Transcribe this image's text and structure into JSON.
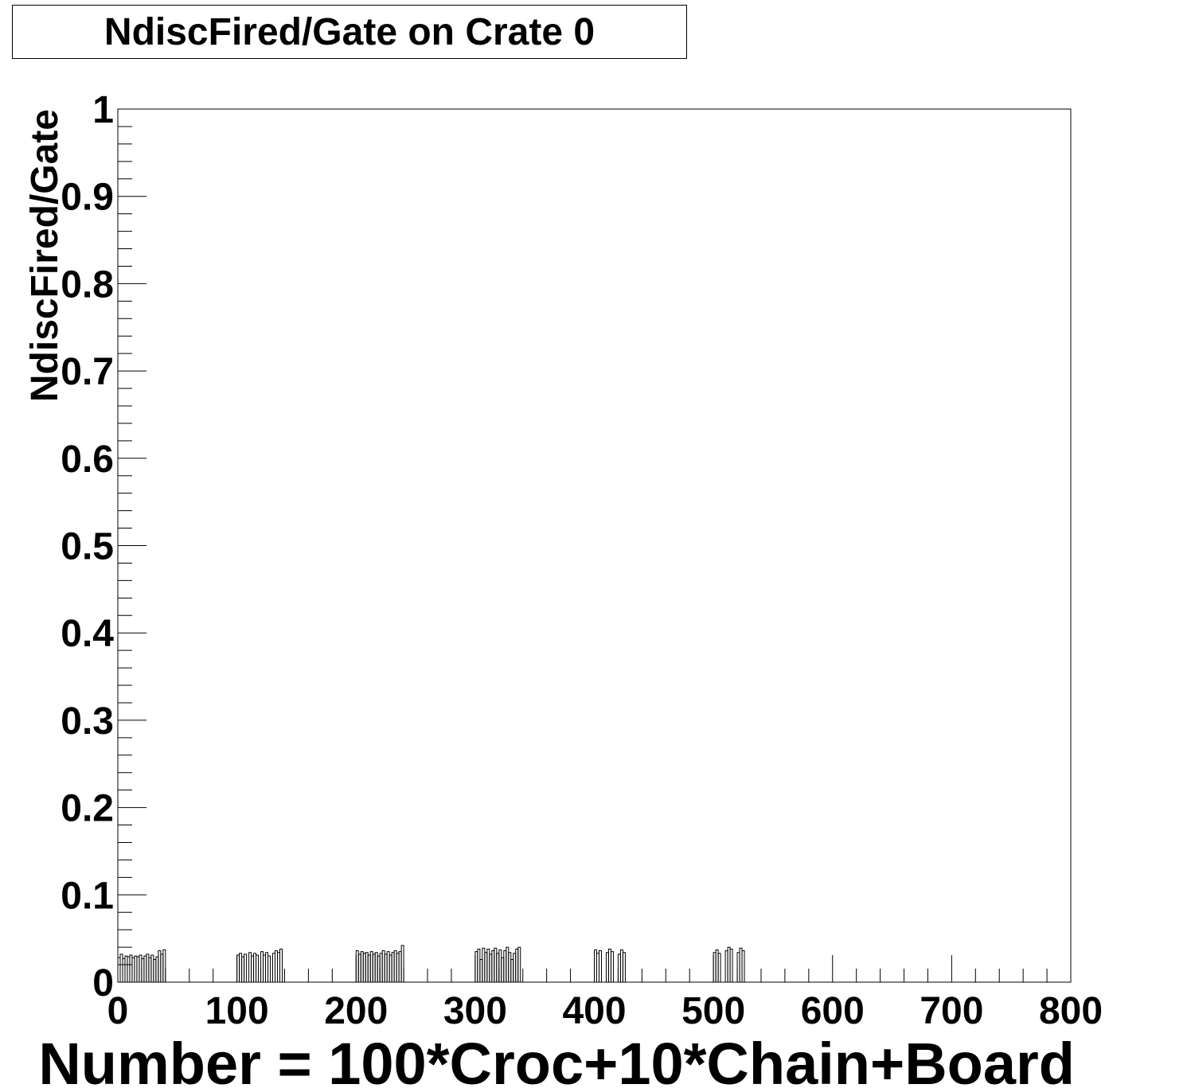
{
  "chart_data": {
    "type": "bar",
    "title": "NdiscFired/Gate on Crate 0",
    "xlabel": "Number = 100*Croc+10*Chain+Board",
    "ylabel": "NdiscFired/Gate",
    "xlim": [
      0,
      800
    ],
    "ylim": [
      0,
      1
    ],
    "x_ticks": [
      "0",
      "100",
      "200",
      "300",
      "400",
      "500",
      "600",
      "700",
      "800"
    ],
    "y_ticks": [
      "0",
      "0.1",
      "0.2",
      "0.3",
      "0.4",
      "0.5",
      "0.6",
      "0.7",
      "0.8",
      "0.9",
      "1"
    ],
    "grid": false,
    "legend": "none",
    "series": [
      {
        "bins": [
          {
            "x": 0,
            "y": 0.028
          },
          {
            "x": 2,
            "y": 0.032
          },
          {
            "x": 4,
            "y": 0.027
          },
          {
            "x": 6,
            "y": 0.03
          },
          {
            "x": 8,
            "y": 0.029
          },
          {
            "x": 10,
            "y": 0.031
          },
          {
            "x": 12,
            "y": 0.028
          },
          {
            "x": 14,
            "y": 0.03
          },
          {
            "x": 16,
            "y": 0.029
          },
          {
            "x": 18,
            "y": 0.031
          },
          {
            "x": 20,
            "y": 0.027
          },
          {
            "x": 22,
            "y": 0.03
          },
          {
            "x": 24,
            "y": 0.032
          },
          {
            "x": 26,
            "y": 0.028
          },
          {
            "x": 28,
            "y": 0.031
          },
          {
            "x": 30,
            "y": 0.026
          },
          {
            "x": 32,
            "y": 0.029
          },
          {
            "x": 34,
            "y": 0.036
          },
          {
            "x": 36,
            "y": 0.032
          },
          {
            "x": 38,
            "y": 0.037
          },
          {
            "x": 100,
            "y": 0.031
          },
          {
            "x": 102,
            "y": 0.033
          },
          {
            "x": 104,
            "y": 0.029
          },
          {
            "x": 106,
            "y": 0.032
          },
          {
            "x": 110,
            "y": 0.034
          },
          {
            "x": 112,
            "y": 0.03
          },
          {
            "x": 114,
            "y": 0.033
          },
          {
            "x": 116,
            "y": 0.031
          },
          {
            "x": 120,
            "y": 0.035
          },
          {
            "x": 122,
            "y": 0.031
          },
          {
            "x": 124,
            "y": 0.034
          },
          {
            "x": 126,
            "y": 0.03
          },
          {
            "x": 130,
            "y": 0.033
          },
          {
            "x": 132,
            "y": 0.036
          },
          {
            "x": 134,
            "y": 0.034
          },
          {
            "x": 136,
            "y": 0.038
          },
          {
            "x": 200,
            "y": 0.036
          },
          {
            "x": 202,
            "y": 0.032
          },
          {
            "x": 204,
            "y": 0.035
          },
          {
            "x": 206,
            "y": 0.033
          },
          {
            "x": 208,
            "y": 0.034
          },
          {
            "x": 210,
            "y": 0.031
          },
          {
            "x": 212,
            "y": 0.035
          },
          {
            "x": 214,
            "y": 0.032
          },
          {
            "x": 216,
            "y": 0.034
          },
          {
            "x": 218,
            "y": 0.03
          },
          {
            "x": 220,
            "y": 0.033
          },
          {
            "x": 222,
            "y": 0.036
          },
          {
            "x": 224,
            "y": 0.032
          },
          {
            "x": 226,
            "y": 0.035
          },
          {
            "x": 228,
            "y": 0.031
          },
          {
            "x": 230,
            "y": 0.034
          },
          {
            "x": 232,
            "y": 0.036
          },
          {
            "x": 234,
            "y": 0.033
          },
          {
            "x": 236,
            "y": 0.035
          },
          {
            "x": 238,
            "y": 0.042
          },
          {
            "x": 300,
            "y": 0.035
          },
          {
            "x": 302,
            "y": 0.038
          },
          {
            "x": 304,
            "y": 0.026
          },
          {
            "x": 306,
            "y": 0.039
          },
          {
            "x": 308,
            "y": 0.034
          },
          {
            "x": 310,
            "y": 0.038
          },
          {
            "x": 312,
            "y": 0.032
          },
          {
            "x": 314,
            "y": 0.036
          },
          {
            "x": 316,
            "y": 0.039
          },
          {
            "x": 318,
            "y": 0.033
          },
          {
            "x": 320,
            "y": 0.037
          },
          {
            "x": 322,
            "y": 0.028
          },
          {
            "x": 324,
            "y": 0.036
          },
          {
            "x": 326,
            "y": 0.04
          },
          {
            "x": 328,
            "y": 0.034
          },
          {
            "x": 330,
            "y": 0.026
          },
          {
            "x": 332,
            "y": 0.033
          },
          {
            "x": 334,
            "y": 0.038
          },
          {
            "x": 336,
            "y": 0.04
          },
          {
            "x": 400,
            "y": 0.037
          },
          {
            "x": 402,
            "y": 0.033
          },
          {
            "x": 404,
            "y": 0.036
          },
          {
            "x": 410,
            "y": 0.034
          },
          {
            "x": 412,
            "y": 0.038
          },
          {
            "x": 414,
            "y": 0.035
          },
          {
            "x": 420,
            "y": 0.032
          },
          {
            "x": 422,
            "y": 0.037
          },
          {
            "x": 424,
            "y": 0.034
          },
          {
            "x": 500,
            "y": 0.034
          },
          {
            "x": 502,
            "y": 0.037
          },
          {
            "x": 504,
            "y": 0.033
          },
          {
            "x": 510,
            "y": 0.036
          },
          {
            "x": 512,
            "y": 0.04
          },
          {
            "x": 514,
            "y": 0.038
          },
          {
            "x": 520,
            "y": 0.034
          },
          {
            "x": 522,
            "y": 0.039
          },
          {
            "x": 524,
            "y": 0.036
          }
        ],
        "bin_width": 2
      }
    ]
  }
}
